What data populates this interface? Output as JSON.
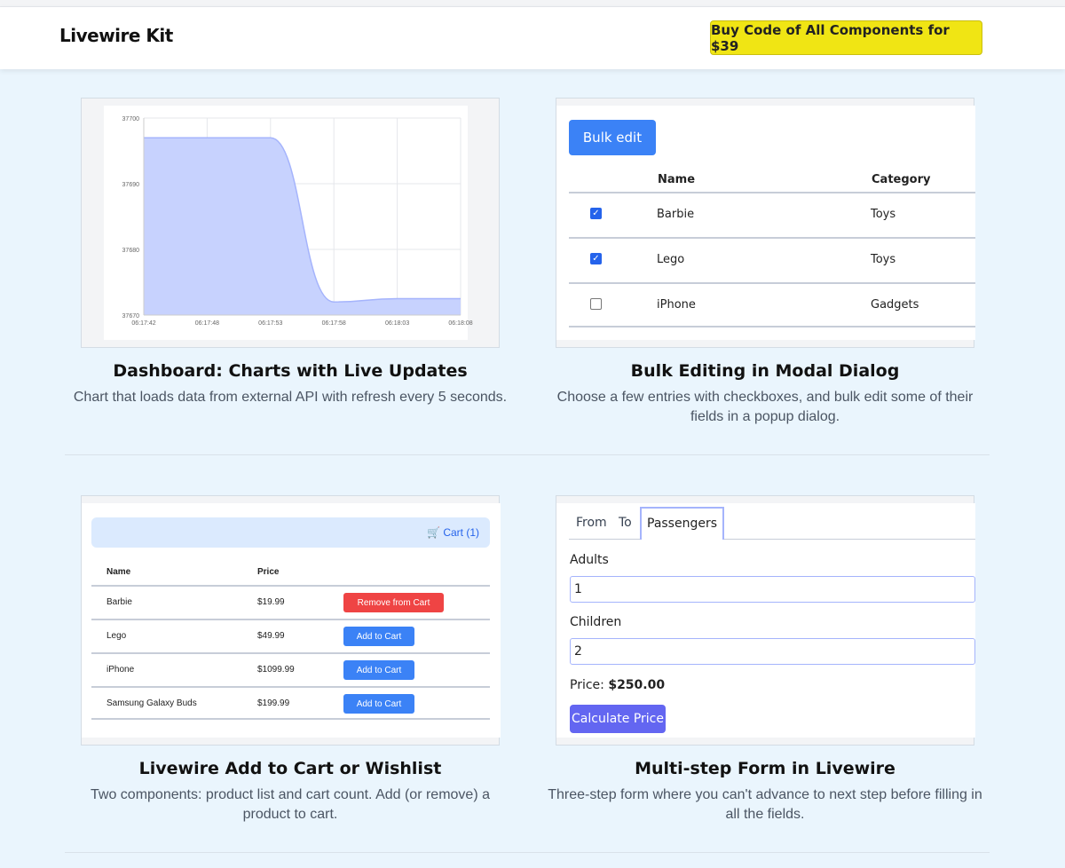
{
  "header": {
    "logo": "Livewire Kit",
    "buy_button": "Buy Code of All Components for $39"
  },
  "cards": [
    {
      "title": "Dashboard: Charts with Live Updates",
      "description": "Chart that loads data from external API with refresh every 5 seconds."
    },
    {
      "title": "Bulk Editing in Modal Dialog",
      "description": "Choose a few entries with checkboxes, and bulk edit some of their fields in a popup dialog."
    },
    {
      "title": "Livewire Add to Cart or Wishlist",
      "description": "Two components: product list and cart count. Add (or remove) a product to cart."
    },
    {
      "title": "Multi-step Form in Livewire",
      "description": "Three-step form where you can't advance to next step before filling in all the fields."
    }
  ],
  "chart_data": {
    "type": "area",
    "x": [
      "06:17:42",
      "06:17:48",
      "06:17:53",
      "06:17:58",
      "06:18:03",
      "06:18:08"
    ],
    "values": [
      37697,
      37697,
      37697,
      37672,
      37672.5,
      37672.5
    ],
    "ylim": [
      37670,
      37700
    ],
    "yticks": [
      "37700",
      "37690",
      "37680",
      "37670"
    ],
    "grid": true,
    "fill_color": "#c7d2fe",
    "line_color": "#a5b4fc"
  },
  "bulk": {
    "button": "Bulk edit",
    "headers": {
      "name": "Name",
      "category": "Category"
    },
    "rows": [
      {
        "name": "Barbie",
        "category": "Toys",
        "checked": true
      },
      {
        "name": "Lego",
        "category": "Toys",
        "checked": true
      },
      {
        "name": "iPhone",
        "category": "Gadgets",
        "checked": false
      }
    ]
  },
  "cart": {
    "link": "Cart (1)",
    "headers": {
      "name": "Name",
      "price": "Price"
    },
    "rows": [
      {
        "name": "Barbie",
        "price": "$19.99",
        "action": "Remove from Cart"
      },
      {
        "name": "Lego",
        "price": "$49.99",
        "action": "Add to Cart"
      },
      {
        "name": "iPhone",
        "price": "$1099.99",
        "action": "Add to Cart"
      },
      {
        "name": "Samsung Galaxy Buds",
        "price": "$199.99",
        "action": "Add to Cart"
      }
    ]
  },
  "form": {
    "tabs": [
      "From",
      "To",
      "Passengers"
    ],
    "adults_label": "Adults",
    "adults_value": "1",
    "children_label": "Children",
    "children_value": "2",
    "price_label": "Price:",
    "price_value": "$250.00",
    "calc_button": "Calculate Price"
  }
}
